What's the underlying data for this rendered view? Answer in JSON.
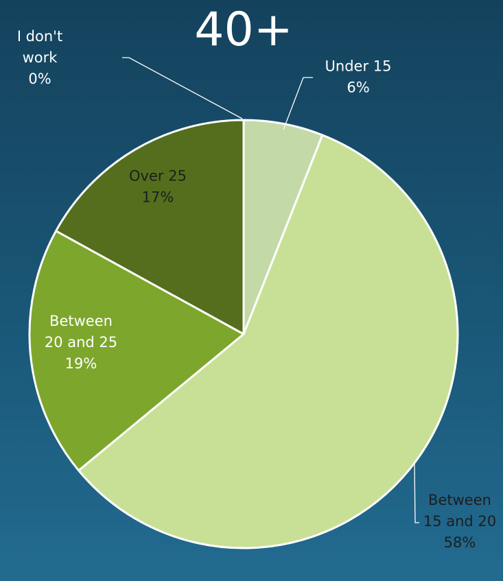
{
  "chart_data": {
    "type": "pie",
    "title": "40+",
    "slices": [
      {
        "category_lines": [
          "Under 15"
        ],
        "percent_label": "6%",
        "value": 6,
        "color": "#c3d9a7"
      },
      {
        "category_lines": [
          "Between",
          "15 and 20"
        ],
        "percent_label": "58%",
        "value": 58,
        "color": "#c8e095"
      },
      {
        "category_lines": [
          "Between",
          "20 and 25"
        ],
        "percent_label": "19%",
        "value": 19,
        "color": "#7da62c"
      },
      {
        "category_lines": [
          "Over 25"
        ],
        "percent_label": "17%",
        "value": 17,
        "color": "#546e1d"
      },
      {
        "category_lines": [
          "I don't",
          "work"
        ],
        "percent_label": "0%",
        "value": 0,
        "color": "#3d5a1a"
      }
    ],
    "legend": "none",
    "slice_border_color": "#ffffff",
    "leader_line_color": "#ffffff"
  }
}
